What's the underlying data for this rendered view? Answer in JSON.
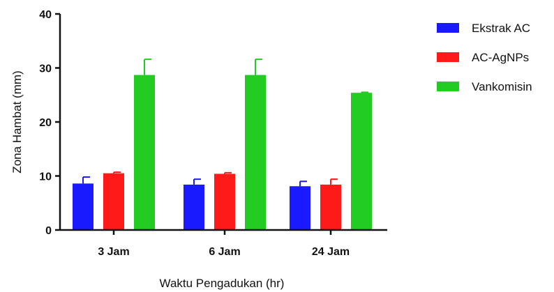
{
  "chart_data": {
    "type": "bar",
    "xlabel": "Waktu Pengadukan (hr)",
    "ylabel": "Zona Hambat (mm)",
    "ylim": [
      0,
      40
    ],
    "yticks": [
      0,
      10,
      20,
      30,
      40
    ],
    "categories": [
      "3 Jam",
      "6 Jam",
      "24 Jam"
    ],
    "series": [
      {
        "name": "Ekstrak AC",
        "color": "#1a1aff",
        "values": [
          8.6,
          8.4,
          8.1
        ],
        "errors": [
          1.2,
          1.0,
          0.9
        ]
      },
      {
        "name": "AC-AgNPs",
        "color": "#ff1a1a",
        "values": [
          10.5,
          10.4,
          8.4
        ],
        "errors": [
          0.2,
          0.2,
          1.0
        ]
      },
      {
        "name": "Vankomisin",
        "color": "#22cc22",
        "values": [
          28.7,
          28.7,
          25.4
        ],
        "errors": [
          2.9,
          2.9,
          0.1
        ]
      }
    ],
    "legend_position": "top-right",
    "grid": false
  }
}
